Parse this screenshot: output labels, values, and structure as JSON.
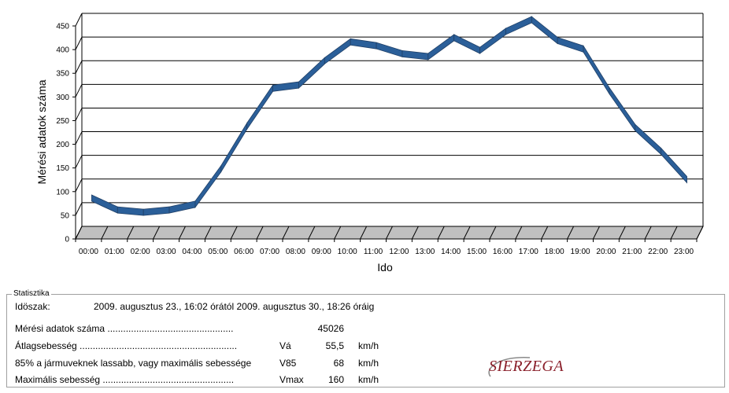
{
  "chart_data": {
    "type": "line",
    "xlabel": "Ido",
    "ylabel": "Mérési adatok száma",
    "ylim": [
      0,
      450
    ],
    "yticks": [
      0,
      50,
      100,
      150,
      200,
      250,
      300,
      350,
      400,
      450
    ],
    "grid": true,
    "style": "3d",
    "categories": [
      "00:00",
      "01:00",
      "02:00",
      "03:00",
      "04:00",
      "05:00",
      "06:00",
      "07:00",
      "08:00",
      "09:00",
      "10:00",
      "11:00",
      "12:00",
      "13:00",
      "14:00",
      "15:00",
      "16:00",
      "17:00",
      "18:00",
      "19:00",
      "20:00",
      "21:00",
      "22:00",
      "23:00"
    ],
    "values": [
      73,
      48,
      43,
      48,
      60,
      135,
      225,
      305,
      312,
      363,
      403,
      395,
      378,
      372,
      412,
      385,
      425,
      450,
      406,
      388,
      300,
      222,
      172,
      112
    ],
    "colors": {
      "line": "#2b5f99",
      "line_edge": "#1f3f66",
      "floor": "#c0c0c0",
      "grid": "#000000"
    }
  },
  "stats": {
    "legend": "Statisztika",
    "period_label": "Idöszak:",
    "period_value": "2009. augusztus 23., 16:02 órától 2009. augusztus 30., 18:26 óráig",
    "rows": [
      {
        "label": "Mérési adatok száma ................................................",
        "symbol": "",
        "value": "45026",
        "unit": ""
      },
      {
        "label": "Átlagsebesség ............................................................",
        "symbol": "Vá",
        "value": "55,5",
        "unit": "km/h"
      },
      {
        "label": "85% a jármuveknek lassabb, vagy maximális sebessége",
        "symbol": "V85",
        "value": "68",
        "unit": "km/h"
      },
      {
        "label": "Maximális sebesség ..................................................",
        "symbol": "Vmax",
        "value": "160",
        "unit": "km/h"
      }
    ],
    "logo_text": "SIERZEGA"
  }
}
